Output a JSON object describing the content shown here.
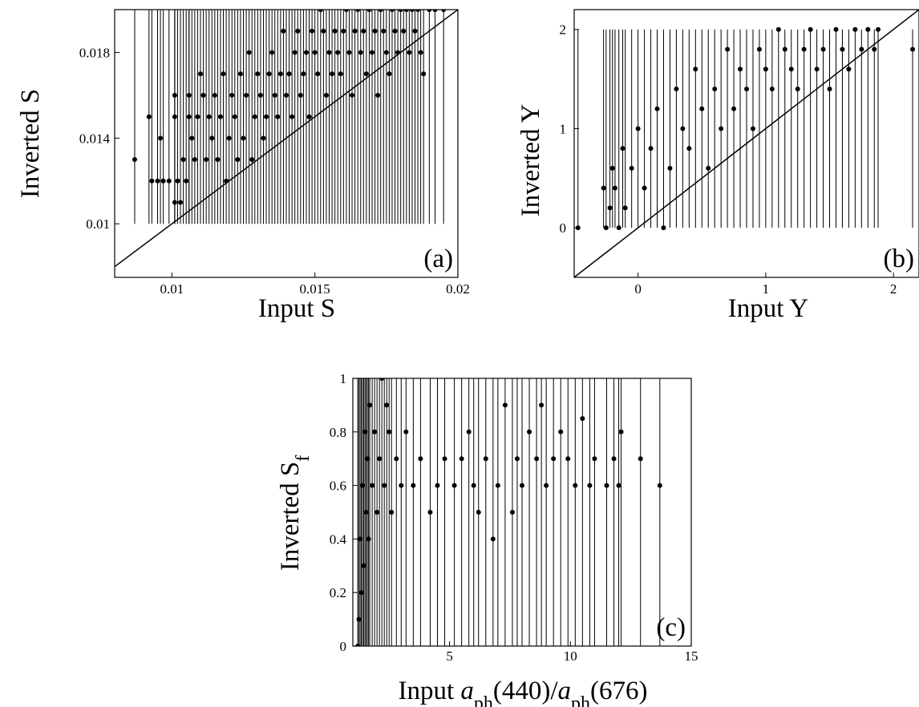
{
  "chart_data": [
    {
      "type": "scatter",
      "panel_label": "(a)",
      "xlabel": "Input S",
      "ylabel": "Inverted S",
      "xlim": [
        0.008,
        0.02
      ],
      "ylim": [
        0.0075,
        0.02
      ],
      "xticks": [
        0.01,
        0.015,
        0.02
      ],
      "xtick_labels": [
        "0.01",
        "0.015",
        "0.02"
      ],
      "yticks": [
        0.01,
        0.014,
        0.018
      ],
      "ytick_labels": [
        "0.01",
        "0.014",
        "0.018"
      ],
      "reference_line": "y = x",
      "errorbar_bottom": 0.01,
      "errorbar_top": 0.02,
      "points": [
        [
          0.0087,
          0.013
        ],
        [
          0.0092,
          0.015
        ],
        [
          0.0093,
          0.012
        ],
        [
          0.0095,
          0.012
        ],
        [
          0.0096,
          0.014
        ],
        [
          0.0097,
          0.012
        ],
        [
          0.0099,
          0.012
        ],
        [
          0.0101,
          0.015
        ],
        [
          0.0101,
          0.016
        ],
        [
          0.0101,
          0.011
        ],
        [
          0.0102,
          0.012
        ],
        [
          0.0103,
          0.011
        ],
        [
          0.0104,
          0.013
        ],
        [
          0.0105,
          0.012
        ],
        [
          0.0106,
          0.015
        ],
        [
          0.0106,
          0.016
        ],
        [
          0.0107,
          0.014
        ],
        [
          0.0108,
          0.013
        ],
        [
          0.0109,
          0.015
        ],
        [
          0.011,
          0.017
        ],
        [
          0.0111,
          0.016
        ],
        [
          0.0112,
          0.013
        ],
        [
          0.0113,
          0.015
        ],
        [
          0.0114,
          0.014
        ],
        [
          0.0115,
          0.016
        ],
        [
          0.0116,
          0.013
        ],
        [
          0.0117,
          0.015
        ],
        [
          0.0118,
          0.017
        ],
        [
          0.0119,
          0.012
        ],
        [
          0.012,
          0.014
        ],
        [
          0.0121,
          0.016
        ],
        [
          0.0122,
          0.015
        ],
        [
          0.0123,
          0.013
        ],
        [
          0.0124,
          0.017
        ],
        [
          0.0125,
          0.014
        ],
        [
          0.0126,
          0.016
        ],
        [
          0.0127,
          0.018
        ],
        [
          0.0128,
          0.013
        ],
        [
          0.0129,
          0.015
        ],
        [
          0.013,
          0.017
        ],
        [
          0.0131,
          0.016
        ],
        [
          0.0132,
          0.014
        ],
        [
          0.0133,
          0.015
        ],
        [
          0.0134,
          0.017
        ],
        [
          0.0135,
          0.018
        ],
        [
          0.0136,
          0.016
        ],
        [
          0.0137,
          0.015
        ],
        [
          0.0138,
          0.017
        ],
        [
          0.0139,
          0.019
        ],
        [
          0.014,
          0.016
        ],
        [
          0.0141,
          0.017
        ],
        [
          0.0142,
          0.015
        ],
        [
          0.0143,
          0.018
        ],
        [
          0.0144,
          0.019
        ],
        [
          0.0145,
          0.016
        ],
        [
          0.0146,
          0.017
        ],
        [
          0.0147,
          0.018
        ],
        [
          0.0148,
          0.015
        ],
        [
          0.0149,
          0.019
        ],
        [
          0.015,
          0.018
        ],
        [
          0.0151,
          0.017
        ],
        [
          0.0152,
          0.02
        ],
        [
          0.0153,
          0.019
        ],
        [
          0.0154,
          0.016
        ],
        [
          0.0155,
          0.018
        ],
        [
          0.0156,
          0.017
        ],
        [
          0.0157,
          0.019
        ],
        [
          0.0158,
          0.018
        ],
        [
          0.0159,
          0.017
        ],
        [
          0.016,
          0.019
        ],
        [
          0.0161,
          0.02
        ],
        [
          0.0162,
          0.018
        ],
        [
          0.0163,
          0.016
        ],
        [
          0.0164,
          0.019
        ],
        [
          0.0165,
          0.02
        ],
        [
          0.0166,
          0.018
        ],
        [
          0.0167,
          0.019
        ],
        [
          0.0168,
          0.017
        ],
        [
          0.0169,
          0.02
        ],
        [
          0.017,
          0.018
        ],
        [
          0.0171,
          0.019
        ],
        [
          0.0172,
          0.016
        ],
        [
          0.0173,
          0.02
        ],
        [
          0.0174,
          0.019
        ],
        [
          0.0175,
          0.018
        ],
        [
          0.0176,
          0.017
        ],
        [
          0.0177,
          0.02
        ],
        [
          0.0178,
          0.019
        ],
        [
          0.0179,
          0.018
        ],
        [
          0.018,
          0.02
        ],
        [
          0.0181,
          0.019
        ],
        [
          0.0182,
          0.02
        ],
        [
          0.0183,
          0.018
        ],
        [
          0.0184,
          0.02
        ],
        [
          0.0185,
          0.019
        ],
        [
          0.0186,
          0.02
        ],
        [
          0.0187,
          0.018
        ],
        [
          0.0188,
          0.017
        ],
        [
          0.019,
          0.02
        ],
        [
          0.0192,
          0.02
        ],
        [
          0.0195,
          0.02
        ]
      ]
    },
    {
      "type": "scatter",
      "panel_label": "(b)",
      "xlabel": "Input Y",
      "ylabel": "Inverted Y",
      "xlim": [
        -0.5,
        2.2
      ],
      "ylim": [
        -0.5,
        2.2
      ],
      "xticks": [
        0,
        1,
        2
      ],
      "xtick_labels": [
        "0",
        "1",
        "2"
      ],
      "yticks": [
        0,
        1,
        2
      ],
      "ytick_labels": [
        "0",
        "1",
        "2"
      ],
      "reference_line": "y = x",
      "errorbar_bottom": 0,
      "errorbar_top": 2,
      "points": [
        [
          -0.47,
          0
        ],
        [
          -0.27,
          0.4
        ],
        [
          -0.25,
          0
        ],
        [
          -0.22,
          0.2
        ],
        [
          -0.2,
          0.6
        ],
        [
          -0.18,
          0.4
        ],
        [
          -0.15,
          0
        ],
        [
          -0.12,
          0.8
        ],
        [
          -0.1,
          0.2
        ],
        [
          -0.05,
          0.6
        ],
        [
          0,
          1
        ],
        [
          0.05,
          0.4
        ],
        [
          0.1,
          0.8
        ],
        [
          0.15,
          1.2
        ],
        [
          0.2,
          0
        ],
        [
          0.25,
          0.6
        ],
        [
          0.3,
          1.4
        ],
        [
          0.35,
          1
        ],
        [
          0.4,
          0.8
        ],
        [
          0.45,
          1.6
        ],
        [
          0.5,
          1.2
        ],
        [
          0.55,
          0.6
        ],
        [
          0.6,
          1.4
        ],
        [
          0.65,
          1
        ],
        [
          0.7,
          1.8
        ],
        [
          0.75,
          1.2
        ],
        [
          0.8,
          1.6
        ],
        [
          0.85,
          1.4
        ],
        [
          0.9,
          1
        ],
        [
          0.95,
          1.8
        ],
        [
          1,
          1.6
        ],
        [
          1.05,
          1.4
        ],
        [
          1.1,
          2
        ],
        [
          1.15,
          1.8
        ],
        [
          1.2,
          1.6
        ],
        [
          1.25,
          1.4
        ],
        [
          1.3,
          1.8
        ],
        [
          1.35,
          2
        ],
        [
          1.4,
          1.6
        ],
        [
          1.45,
          1.8
        ],
        [
          1.5,
          1.4
        ],
        [
          1.55,
          2
        ],
        [
          1.6,
          1.8
        ],
        [
          1.65,
          1.6
        ],
        [
          1.7,
          2
        ],
        [
          1.75,
          1.8
        ],
        [
          1.8,
          2
        ],
        [
          1.85,
          1.8
        ],
        [
          1.88,
          2
        ],
        [
          2.15,
          1.8
        ]
      ]
    },
    {
      "type": "scatter",
      "panel_label": "(c)",
      "xlabel_parts": [
        "Input ",
        "a",
        "ph",
        "(440)/",
        "a",
        "ph",
        "(676)"
      ],
      "ylabel_parts": [
        "Inverted S",
        "f"
      ],
      "xlim": [
        1,
        15
      ],
      "ylim": [
        0,
        1
      ],
      "xticks": [
        5,
        10,
        15
      ],
      "xtick_labels": [
        "5",
        "10",
        "15"
      ],
      "yticks": [
        0,
        0.2,
        0.4,
        0.6,
        0.8,
        1
      ],
      "ytick_labels": [
        "0",
        "0.2",
        "0.4",
        "0.6",
        "0.8",
        "1"
      ],
      "errorbar_bottom": 0,
      "errorbar_top": 1,
      "points": [
        [
          1.2,
          0
        ],
        [
          1.25,
          0.1
        ],
        [
          1.3,
          0.4
        ],
        [
          1.35,
          0.2
        ],
        [
          1.4,
          0.6
        ],
        [
          1.45,
          0.3
        ],
        [
          1.5,
          0.8
        ],
        [
          1.55,
          0.5
        ],
        [
          1.6,
          0.7
        ],
        [
          1.65,
          0.4
        ],
        [
          1.7,
          0.9
        ],
        [
          1.8,
          0.6
        ],
        [
          1.9,
          0.8
        ],
        [
          2,
          0.5
        ],
        [
          2.1,
          0.7
        ],
        [
          2.2,
          1
        ],
        [
          2.3,
          0.6
        ],
        [
          2.4,
          0.9
        ],
        [
          2.5,
          0.8
        ],
        [
          2.6,
          0.5
        ],
        [
          2.8,
          0.7
        ],
        [
          3,
          0.6
        ],
        [
          3.2,
          0.8
        ],
        [
          3.5,
          0.6
        ],
        [
          3.8,
          0.7
        ],
        [
          4.2,
          0.5
        ],
        [
          4.5,
          0.6
        ],
        [
          4.8,
          0.7
        ],
        [
          5.2,
          0.6
        ],
        [
          5.5,
          0.7
        ],
        [
          5.8,
          0.8
        ],
        [
          6,
          0.6
        ],
        [
          6.2,
          0.5
        ],
        [
          6.5,
          0.7
        ],
        [
          6.8,
          0.4
        ],
        [
          7,
          0.6
        ],
        [
          7.3,
          0.9
        ],
        [
          7.6,
          0.5
        ],
        [
          7.8,
          0.7
        ],
        [
          8,
          0.6
        ],
        [
          8.3,
          0.8
        ],
        [
          8.6,
          0.7
        ],
        [
          8.8,
          0.9
        ],
        [
          9,
          0.6
        ],
        [
          9.3,
          0.7
        ],
        [
          9.6,
          0.8
        ],
        [
          9.9,
          0.7
        ],
        [
          10.2,
          0.6
        ],
        [
          10.5,
          0.85
        ],
        [
          10.8,
          0.6
        ],
        [
          11,
          0.7
        ],
        [
          11.5,
          0.6
        ],
        [
          11.8,
          0.7
        ],
        [
          12,
          0.6
        ],
        [
          12.1,
          0.8
        ],
        [
          12.9,
          0.7
        ],
        [
          13.7,
          0.6
        ]
      ]
    }
  ]
}
